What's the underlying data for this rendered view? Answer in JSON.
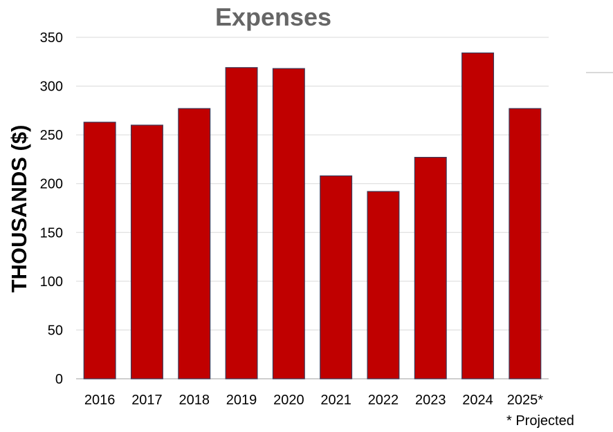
{
  "chart_data": {
    "type": "bar",
    "title": "Expenses",
    "xlabel": "",
    "ylabel": "THOUSANDS ($)",
    "categories": [
      "2016",
      "2017",
      "2018",
      "2019",
      "2020",
      "2021",
      "2022",
      "2023",
      "2024",
      "2025*"
    ],
    "values": [
      263,
      260,
      277,
      319,
      318,
      208,
      192,
      227,
      334,
      277
    ],
    "ylim": [
      0,
      350
    ],
    "yticks": [
      "0",
      "50",
      "100",
      "150",
      "200",
      "250",
      "300",
      "350"
    ],
    "grid": true,
    "bar_color": "#c00000",
    "bar_edge_color": "#3a3a5a",
    "footnote": "* Projected"
  }
}
